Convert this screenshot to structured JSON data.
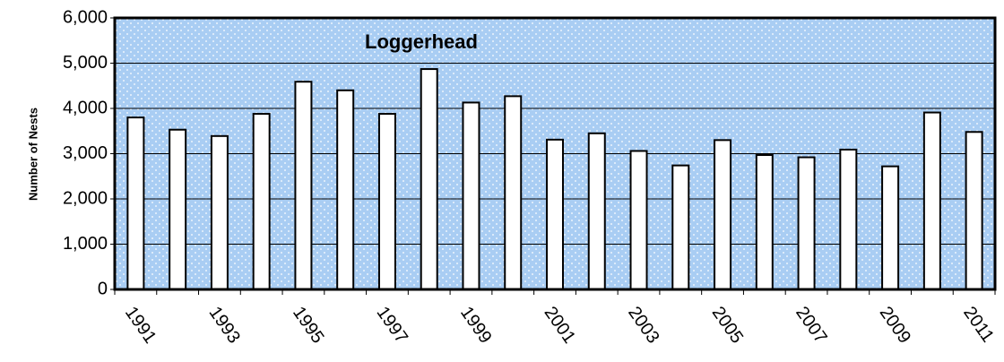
{
  "chart_data": {
    "type": "bar",
    "title": "Loggerhead",
    "y_label": "Number of Nests",
    "categories": [
      "1991",
      null,
      "1993",
      null,
      "1995",
      null,
      "1997",
      null,
      "1999",
      null,
      "2001",
      null,
      "2003",
      null,
      "2005",
      null,
      "2007",
      null,
      "2009",
      null,
      "2011"
    ],
    "values": [
      3800,
      3530,
      3390,
      3880,
      4590,
      4400,
      3880,
      4870,
      4130,
      4270,
      3310,
      3450,
      3060,
      2740,
      3300,
      2970,
      2920,
      3090,
      2720,
      3910,
      3480
    ],
    "color": "#ffffff",
    "ylim": [
      0,
      6000
    ],
    "yticks": [
      0,
      {
        "value": 1000,
        "label": "1,000"
      },
      {
        "value": 2000,
        "label": "2,000"
      },
      {
        "value": 3000,
        "label": "3,000"
      },
      {
        "value": 4000,
        "label": "4,000"
      },
      {
        "value": 5000,
        "label": "5,000"
      },
      {
        "value": 6000,
        "label": "6,000"
      }
    ],
    "grid": true
  }
}
